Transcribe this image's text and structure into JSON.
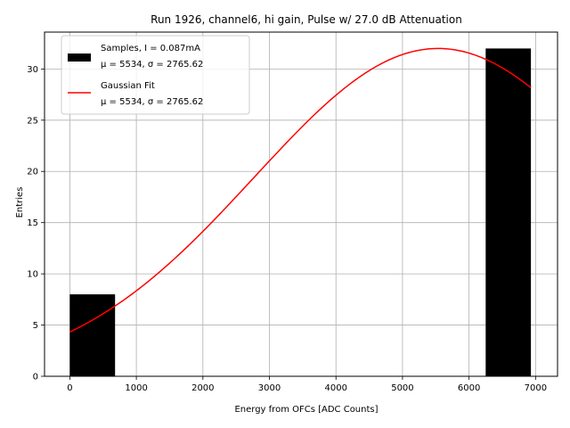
{
  "chart_data": {
    "type": "bar",
    "title": "Run 1926, channel6, hi gain, Pulse w/ 27.0 dB Attenuation",
    "xlabel": "Energy from OFCs [ADC Counts]",
    "ylabel": "Entries",
    "xlim": [
      -380,
      7330
    ],
    "ylim": [
      0,
      33.6
    ],
    "xticks": [
      0,
      1000,
      2000,
      3000,
      4000,
      5000,
      6000,
      7000
    ],
    "yticks": [
      0,
      5,
      10,
      15,
      20,
      25,
      30
    ],
    "grid": true,
    "legend_position": "upper-left",
    "bars": [
      {
        "x_start": 0,
        "x_end": 680,
        "value": 8
      },
      {
        "x_start": 6250,
        "x_end": 6930,
        "value": 32
      }
    ],
    "series": [
      {
        "name": "Samples, I = 0.087mA",
        "name_line2": "μ = 5534, σ = 2765.62",
        "kind": "bar",
        "color": "#000000"
      },
      {
        "name": "Gaussian Fit",
        "name_line2": "μ = 5534, σ = 2765.62",
        "kind": "line",
        "color": "#ff0000",
        "mu": 5534,
        "sigma": 2765.62,
        "amplitude": 32,
        "x_range": [
          0,
          6930
        ]
      }
    ]
  }
}
